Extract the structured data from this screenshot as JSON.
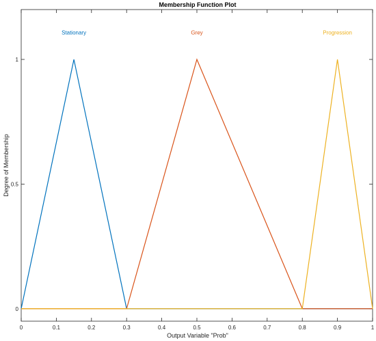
{
  "chart_data": {
    "type": "line",
    "title": "Membership Function Plot",
    "xlabel": "Output Variable \"Prob\"",
    "ylabel": "Degree of Membership",
    "xlim": [
      0,
      1
    ],
    "ylim": [
      -0.05,
      1.2
    ],
    "x_ticks": [
      0,
      0.1,
      0.2,
      0.3,
      0.4,
      0.5,
      0.6,
      0.7,
      0.8,
      0.9,
      1
    ],
    "x_tick_labels": [
      "0",
      "0.1",
      "0.2",
      "0.3",
      "0.4",
      "0.5",
      "0.6",
      "0.7",
      "0.8",
      "0.9",
      "1"
    ],
    "y_ticks": [
      0,
      0.5,
      1
    ],
    "y_tick_labels": [
      "0",
      "0.5",
      "1"
    ],
    "grid": false,
    "series": [
      {
        "name": "Stationary",
        "color": "#0072BD",
        "x": [
          0,
          0.15,
          0.3,
          1
        ],
        "y": [
          0,
          1,
          0,
          0
        ]
      },
      {
        "name": "Grey",
        "color": "#D95319",
        "x": [
          0,
          0.3,
          0.5,
          0.8,
          1
        ],
        "y": [
          0,
          0,
          1,
          0,
          0
        ]
      },
      {
        "name": "Progression",
        "color": "#EDB120",
        "x": [
          0,
          0.8,
          0.9,
          1
        ],
        "y": [
          0,
          0,
          1,
          0
        ]
      }
    ],
    "annotations": [
      {
        "text": "Stationary",
        "x": 0.15,
        "y": 1.1,
        "color": "#0072BD"
      },
      {
        "text": "Grey",
        "x": 0.5,
        "y": 1.1,
        "color": "#D95319"
      },
      {
        "text": "Progression",
        "x": 0.9,
        "y": 1.1,
        "color": "#EDB120"
      }
    ]
  }
}
